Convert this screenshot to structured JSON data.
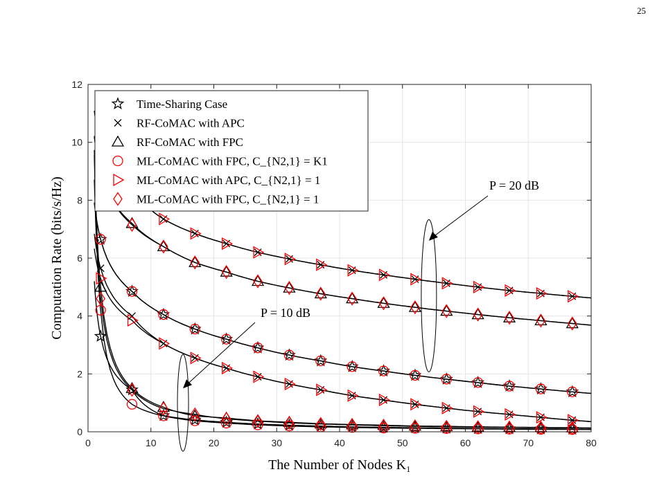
{
  "page_number": "25",
  "chart_data": {
    "type": "line",
    "xlabel": "The Number of Nodes K₁",
    "ylabel": "Computation Rate (bits/s/Hz)",
    "xlim": [
      0,
      80
    ],
    "ylim": [
      0,
      12
    ],
    "xticks": [
      0,
      10,
      20,
      30,
      40,
      50,
      60,
      70,
      80
    ],
    "yticks": [
      0,
      2,
      4,
      6,
      8,
      10,
      12
    ],
    "grid": true,
    "legend_position": "top-left",
    "x": [
      2,
      7,
      12,
      17,
      22,
      27,
      32,
      37,
      42,
      47,
      52,
      57,
      62,
      67,
      72,
      77
    ],
    "series": [
      {
        "name": "Time-Sharing Case",
        "marker": "star",
        "color": "#000000",
        "group": "P=10dB",
        "values": [
          3.3,
          1.45,
          0.56,
          0.41,
          0.33,
          0.27,
          0.23,
          0.2,
          0.17,
          0.155,
          0.14,
          0.125,
          0.115,
          0.105,
          0.1,
          0.09
        ]
      },
      {
        "name": "RF-CoMAC with FPC",
        "marker": "triangle",
        "color": "#000000",
        "group": "P=10dB",
        "values": [
          5.0,
          1.5,
          0.85,
          0.55,
          0.48,
          0.38,
          0.33,
          0.28,
          0.25,
          0.23,
          0.2,
          0.19,
          0.17,
          0.16,
          0.15,
          0.14
        ]
      },
      {
        "name": "ML-CoMAC with FPC, C_{N2,1} = K1",
        "marker": "circle",
        "color": "#ff0000",
        "group": "P=10dB",
        "values": [
          4.2,
          0.95,
          0.55,
          0.38,
          0.3,
          0.24,
          0.2,
          0.17,
          0.15,
          0.13,
          0.12,
          0.11,
          0.1,
          0.09,
          0.085,
          0.08
        ]
      },
      {
        "name": "ML-CoMAC with FPC, C_{N2,1} = 1",
        "marker": "diamond",
        "color": "#ff0000",
        "group": "P=10dB",
        "values": [
          4.6,
          1.45,
          0.8,
          0.6,
          0.45,
          0.37,
          0.31,
          0.27,
          0.24,
          0.21,
          0.19,
          0.17,
          0.16,
          0.15,
          0.14,
          0.13
        ]
      },
      {
        "name": "RF-CoMAC with APC",
        "marker": "cross",
        "color": "#000000",
        "group": "P=10dB",
        "values": [
          5.65,
          4.0,
          3.05,
          2.55,
          2.2,
          1.9,
          1.65,
          1.45,
          1.25,
          1.1,
          0.95,
          0.82,
          0.7,
          0.6,
          0.5,
          0.4
        ]
      },
      {
        "name": "ML-CoMAC with APC, C_{N2,1} = 1",
        "marker": "triangle-right",
        "color": "#ff0000",
        "group": "P=10dB",
        "values": [
          5.3,
          3.85,
          3.05,
          2.55,
          2.2,
          1.9,
          1.65,
          1.45,
          1.25,
          1.1,
          0.95,
          0.82,
          0.7,
          0.6,
          0.5,
          0.4
        ]
      },
      {
        "name": "Time-Sharing Case",
        "marker": "star",
        "color": "#000000",
        "group": "P=20dB",
        "values": [
          6.65,
          4.85,
          4.05,
          3.55,
          3.2,
          2.9,
          2.65,
          2.45,
          2.25,
          2.1,
          1.95,
          1.82,
          1.7,
          1.58,
          1.48,
          1.38
        ]
      },
      {
        "name": "ML-CoMAC with FPC, C_{N2,1} = K1",
        "marker": "circle",
        "color": "#ff0000",
        "group": "P=20dB",
        "values": [
          6.65,
          4.85,
          4.05,
          3.55,
          3.2,
          2.9,
          2.65,
          2.45,
          2.25,
          2.1,
          1.95,
          1.82,
          1.7,
          1.58,
          1.48,
          1.38
        ]
      },
      {
        "name": "RF-CoMAC with FPC",
        "marker": "triangle",
        "color": "#000000",
        "group": "P=20dB",
        "values": [
          9.0,
          7.2,
          6.4,
          5.85,
          5.52,
          5.2,
          4.97,
          4.77,
          4.6,
          4.44,
          4.3,
          4.17,
          4.05,
          3.94,
          3.84,
          3.74
        ]
      },
      {
        "name": "ML-CoMAC with FPC, C_{N2,1} = 1",
        "marker": "diamond",
        "color": "#ff0000",
        "group": "P=20dB",
        "values": [
          9.0,
          7.15,
          6.4,
          5.85,
          5.52,
          5.2,
          4.97,
          4.77,
          4.6,
          4.44,
          4.3,
          4.17,
          4.05,
          3.94,
          3.84,
          3.74
        ]
      },
      {
        "name": "RF-CoMAC with APC",
        "marker": "cross",
        "color": "#000000",
        "group": "P=20dB",
        "values": [
          10.0,
          8.3,
          7.35,
          6.85,
          6.5,
          6.2,
          5.97,
          5.77,
          5.58,
          5.42,
          5.27,
          5.13,
          5.0,
          4.88,
          4.78,
          4.68
        ]
      },
      {
        "name": "ML-CoMAC with APC, C_{N2,1} = 1",
        "marker": "triangle-right",
        "color": "#ff0000",
        "group": "P=20dB",
        "values": [
          10.0,
          8.3,
          7.35,
          6.85,
          6.5,
          6.2,
          5.97,
          5.77,
          5.58,
          5.42,
          5.27,
          5.13,
          5.0,
          4.88,
          4.78,
          4.68
        ]
      }
    ],
    "legend": [
      {
        "label": "Time-Sharing Case",
        "marker": "star",
        "color": "#000000"
      },
      {
        "label": "RF-CoMAC with APC",
        "marker": "cross",
        "color": "#000000"
      },
      {
        "label": "RF-CoMAC with FPC",
        "marker": "triangle",
        "color": "#000000"
      },
      {
        "label": "ML-CoMAC with FPC, C_{N2,1} = K1",
        "marker": "circle",
        "color": "#ff0000"
      },
      {
        "label": "ML-CoMAC with APC, C_{N2,1} = 1",
        "marker": "triangle-right",
        "color": "#ff0000"
      },
      {
        "label": "ML-CoMAC with FPC, C_{N2,1} = 1",
        "marker": "diamond",
        "color": "#ff0000"
      }
    ],
    "annotations": [
      {
        "text": "P = 20 dB",
        "target_x": 54.2,
        "target_y": 6.6
      },
      {
        "text": "P = 10 dB",
        "target_x": 15.1,
        "target_y": 1.5
      }
    ]
  }
}
